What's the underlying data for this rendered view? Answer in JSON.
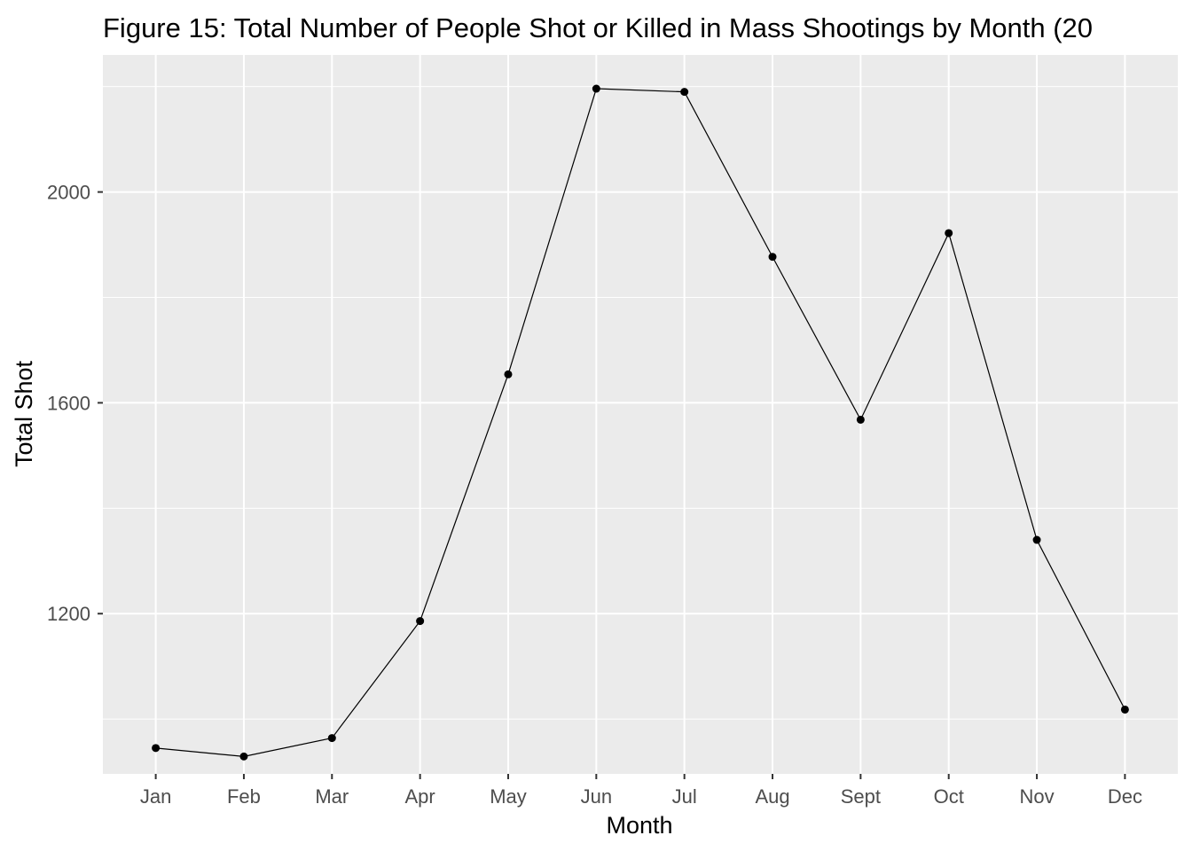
{
  "chart_data": {
    "type": "line",
    "title": "Figure 15: Total Number of People Shot or Killed in Mass Shootings by Month (20",
    "xlabel": "Month",
    "ylabel": "Total Shot",
    "categories": [
      "Jan",
      "Feb",
      "Mar",
      "Apr",
      "May",
      "Jun",
      "Jul",
      "Aug",
      "Sept",
      "Oct",
      "Nov",
      "Dec"
    ],
    "series": [
      {
        "values": [
          945,
          929,
          964,
          1186,
          1654,
          2196,
          2190,
          1877,
          1568,
          1922,
          1340,
          1018
        ]
      }
    ],
    "ylim": [
      896,
      2260
    ],
    "y_ticks": [
      1200,
      1600,
      2000
    ],
    "y_tick_labels": [
      "1200",
      "1600",
      "2000"
    ],
    "grid": true,
    "legend": "none",
    "colors": {
      "panel": "#ebebeb",
      "grid": "#ffffff",
      "line": "#000000",
      "point": "#000000",
      "tick_text": "#4d4d4d"
    }
  }
}
